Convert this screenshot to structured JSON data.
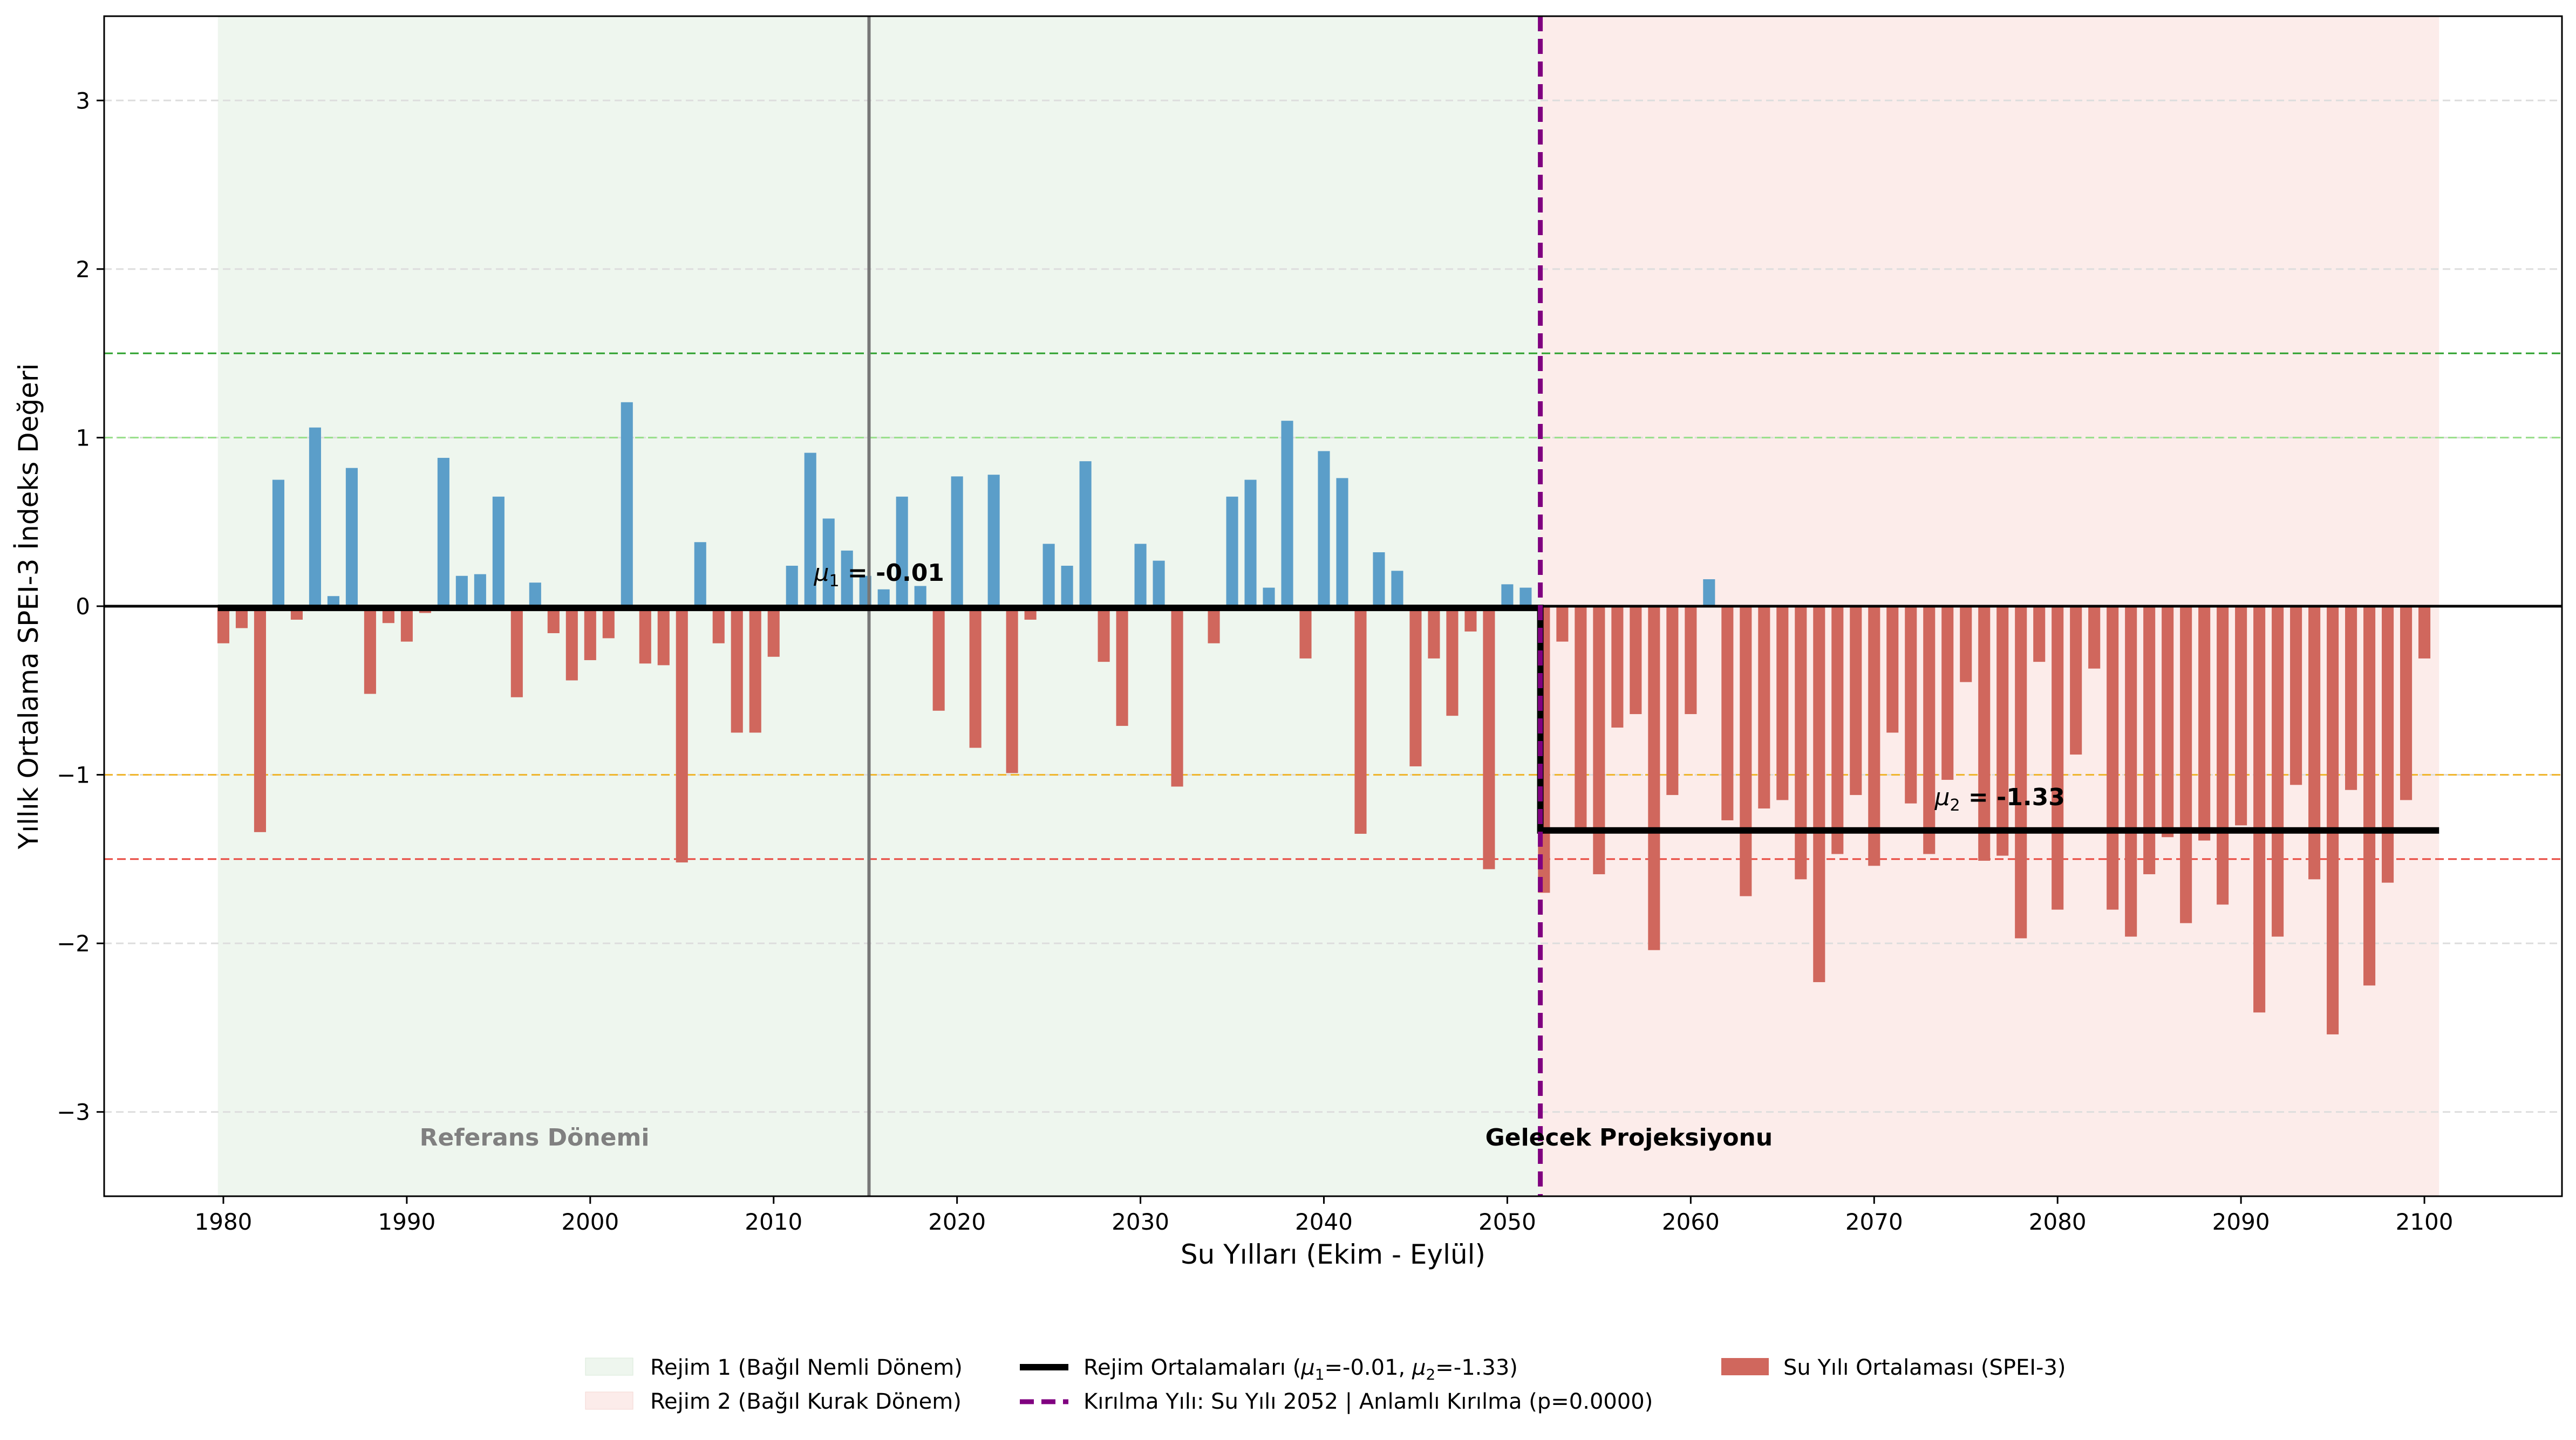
{
  "chart_data": {
    "type": "bar",
    "xlabel": "Su Yılları (Ekim - Eylül)",
    "ylabel": "Yıllık Ortalama SPEI-3 İndeks Değeri",
    "xlim": [
      1973.5,
      2107.5
    ],
    "ylim": [
      -3.5,
      3.5
    ],
    "x_ticks": [
      1980,
      1990,
      2000,
      2010,
      2020,
      2030,
      2040,
      2050,
      2060,
      2070,
      2080,
      2090,
      2100
    ],
    "y_ticks": [
      -3,
      -2,
      -1,
      0,
      1,
      2,
      3
    ],
    "grid": "y dashed",
    "legend_position": "bottom-center",
    "start_year": 1980,
    "values": [
      -0.22,
      -0.13,
      -1.34,
      0.75,
      -0.08,
      1.06,
      0.06,
      0.82,
      -0.52,
      -0.1,
      -0.21,
      -0.04,
      0.88,
      0.18,
      0.19,
      0.65,
      -0.54,
      0.14,
      -0.16,
      -0.44,
      -0.32,
      -0.19,
      1.21,
      -0.34,
      -0.35,
      -1.52,
      0.38,
      -0.22,
      -0.75,
      -0.75,
      -0.3,
      0.24,
      0.91,
      0.52,
      0.33,
      0.18,
      0.1,
      0.65,
      0.12,
      -0.62,
      0.77,
      -0.84,
      0.78,
      -0.99,
      -0.08,
      0.37,
      0.24,
      0.86,
      -0.33,
      -0.71,
      0.37,
      0.27,
      -1.07,
      0.0,
      -0.22,
      0.65,
      0.75,
      0.11,
      1.1,
      -0.31,
      0.92,
      0.76,
      -1.35,
      0.32,
      0.21,
      -0.95,
      -0.31,
      -0.65,
      -0.15,
      -1.56,
      0.13,
      0.11,
      -1.7,
      -0.21,
      -1.32,
      -1.59,
      -0.72,
      -0.64,
      -2.04,
      -1.12,
      -0.64,
      0.16,
      -1.27,
      -1.72,
      -1.2,
      -1.15,
      -1.62,
      -2.23,
      -1.47,
      -1.12,
      -1.54,
      -0.75,
      -1.17,
      -1.47,
      -1.03,
      -0.45,
      -1.51,
      -1.48,
      -1.97,
      -0.33,
      -1.8,
      -0.88,
      -0.37,
      -1.8,
      -1.96,
      -1.59,
      -1.37,
      -1.88,
      -1.39,
      -1.77,
      -1.3,
      -2.41,
      -1.96,
      -1.06,
      -1.62,
      -2.54,
      -1.09,
      -2.25,
      -1.64,
      -1.15,
      -0.31
    ],
    "positive_color": "#5b9ec9",
    "negative_color": "#d0675d",
    "regime1": {
      "start": 1979.7,
      "end": 2051.8,
      "mean": -0.01,
      "color": "#eef6ee"
    },
    "regime2": {
      "start": 2051.8,
      "end": 2100.8,
      "mean": -1.33,
      "color": "#fcecea"
    },
    "reference_line_x": 2015.2,
    "break_line_x": 2051.8,
    "break_color": "#800080",
    "threshold_lines": [
      {
        "y": 1.5,
        "color": "#2ca02c"
      },
      {
        "y": 1.0,
        "color": "#98df8a"
      },
      {
        "y": -1.0,
        "color": "#f0b429"
      },
      {
        "y": -1.5,
        "color": "#e8453c"
      }
    ],
    "annotations": {
      "mu1_sub": "1",
      "mu1_value": " = -0.01",
      "mu2_sub": "2",
      "mu2_value": " = -1.33",
      "reference_period": "Referans Dönemi",
      "future_projection": "Gelecek Projeksiyonu"
    },
    "legend": {
      "regime1": "Rejim 1 (Bağıl Nemli Dönem)",
      "regime2": "Rejim 2 (Bağıl Kurak Dönem)",
      "means_prefix": "Rejim Ortalamaları (",
      "means_mid1": "=-0.01, ",
      "means_mid2": "=-1.33)",
      "break": "Kırılma Yılı: Su Yılı 2052 | Anlamlı Kırılma (p=0.0000)",
      "bars": "Su Yılı Ortalaması (SPEI-3)"
    }
  }
}
